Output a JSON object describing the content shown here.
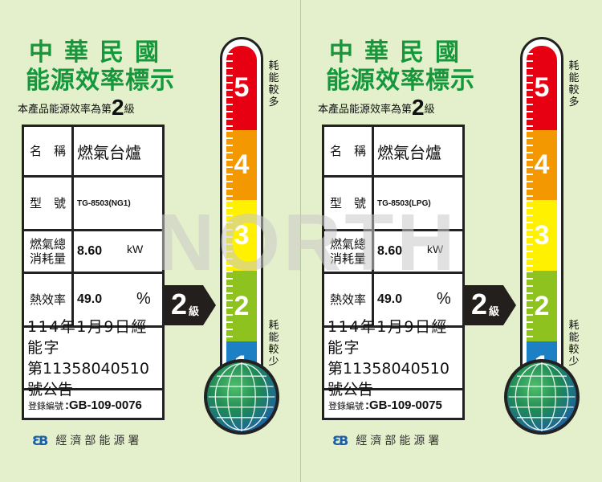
{
  "common": {
    "title_line1": "中華民國",
    "title_line2": "能源效率標示",
    "grade_prefix": "本產品能源效率為第",
    "grade": "2",
    "grade_suffix": "級",
    "name_key": "名　稱",
    "name_value": "燃氣台爐",
    "model_key": "型　號",
    "consumption_key": "燃氣總消耗量",
    "consumption_value": "8.60",
    "consumption_unit": "kW",
    "efficiency_key": "熱效率",
    "efficiency_value": "49.0",
    "efficiency_unit": "%",
    "announce_line1": "114年1月9日經能字",
    "announce_line2": "第11358040510號公告",
    "reg_key": "登錄編號",
    "agency_mark": "eB",
    "agency": "經濟部能源署",
    "arrow_grade": "2",
    "arrow_suffix": "級",
    "scale": [
      "5",
      "4",
      "3",
      "2",
      "1"
    ],
    "scale_colors": [
      "#e60012",
      "#f39800",
      "#fff100",
      "#8dc21f",
      "#1d7fc4"
    ],
    "high_label": "耗能較多",
    "low_label": "耗能較少",
    "accent": "#17973c"
  },
  "labels": [
    {
      "model": "TG-8503(NG1)",
      "reg_no": ":GB-109-0076"
    },
    {
      "model": "TG-8503(LPG)",
      "reg_no": ":GB-109-0075"
    }
  ],
  "watermark": "NORTH"
}
